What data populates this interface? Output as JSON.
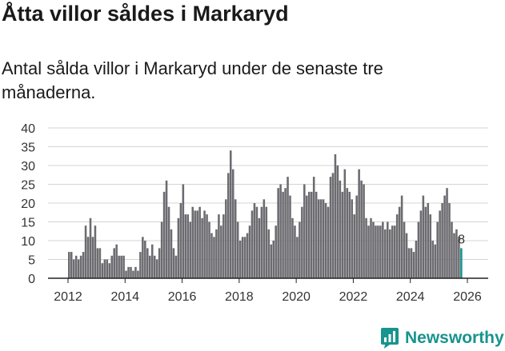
{
  "header": {
    "title": "Åtta villor såldes i Markaryd",
    "subtitle": "Antal sålda villor i Markaryd under de senaste tre månaderna."
  },
  "logo": {
    "text": "Newsworthy",
    "icon": "chart-speech-bubble-icon"
  },
  "colors": {
    "bar": "#6b6b70",
    "highlight": "#17948d",
    "grid": "#d4d4d4",
    "axis": "#222222",
    "brand": "#17948d"
  },
  "chart_data": {
    "type": "bar",
    "title": "Åtta villor såldes i Markaryd",
    "subtitle": "Antal sålda villor i Markaryd under de senaste tre månaderna.",
    "xlabel": "",
    "ylabel": "",
    "ylim": [
      0,
      40
    ],
    "yticks": [
      0,
      5,
      10,
      15,
      20,
      25,
      30,
      35,
      40
    ],
    "xticks": [
      "2012",
      "2014",
      "2016",
      "2018",
      "2020",
      "2022",
      "2024",
      "2026"
    ],
    "grid": true,
    "start": "2012-01",
    "frequency": "monthly",
    "last_label": "8",
    "values": [
      7,
      7,
      5,
      6,
      5,
      6,
      7,
      14,
      11,
      16,
      11,
      14,
      8,
      8,
      4,
      5,
      5,
      4,
      6,
      8,
      9,
      6,
      6,
      6,
      2,
      3,
      3,
      2,
      3,
      2,
      7,
      11,
      10,
      8,
      6,
      9,
      6,
      5,
      8,
      15,
      23,
      26,
      19,
      13,
      8,
      6,
      16,
      20,
      25,
      17,
      17,
      15,
      19,
      18,
      18,
      19,
      16,
      18,
      17,
      15,
      12,
      11,
      13,
      17,
      14,
      17,
      21,
      28,
      34,
      29,
      21,
      15,
      10,
      11,
      11,
      12,
      14,
      18,
      20,
      19,
      16,
      19,
      21,
      19,
      13,
      9,
      10,
      14,
      24,
      25,
      23,
      24,
      27,
      22,
      16,
      14,
      11,
      15,
      19,
      25,
      22,
      23,
      23,
      27,
      23,
      21,
      21,
      21,
      20,
      19,
      27,
      28,
      33,
      30,
      26,
      23,
      29,
      24,
      23,
      21,
      17,
      22,
      29,
      26,
      25,
      16,
      14,
      16,
      15,
      14,
      14,
      14,
      15,
      13,
      15,
      13,
      14,
      14,
      17,
      19,
      22,
      15,
      12,
      8,
      8,
      7,
      10,
      15,
      18,
      22,
      19,
      20,
      17,
      10,
      9,
      15,
      18,
      20,
      22,
      24,
      20,
      15,
      12,
      13,
      11,
      8
    ]
  }
}
